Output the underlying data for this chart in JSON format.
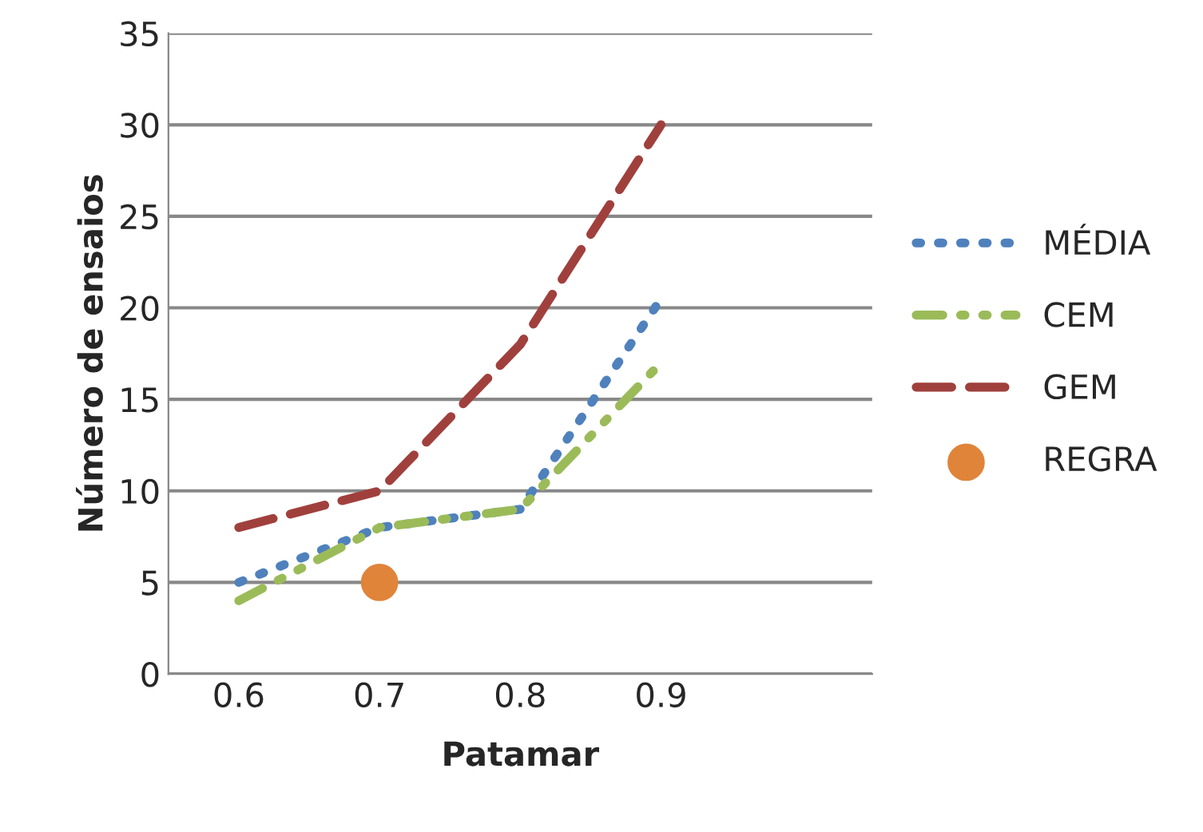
{
  "chart_data": {
    "type": "line",
    "xlabel": "Patamar",
    "ylabel": "Número de ensaios",
    "categories": [
      "0.6",
      "0.7",
      "0.8",
      "0.9",
      null
    ],
    "series": [
      {
        "name": "MÉDIA",
        "color": "#4f81bd",
        "line_style": "dotted",
        "values": [
          5,
          8,
          9,
          20.5,
          null
        ]
      },
      {
        "name": "CEM",
        "color": "#9bbb59",
        "line_style": "dashdot",
        "values": [
          4,
          8,
          9,
          17,
          null
        ]
      },
      {
        "name": "GEM",
        "color": "#a0403d",
        "line_style": "dashed",
        "values": [
          8,
          10,
          18,
          30,
          null
        ]
      },
      {
        "name": "REGRA",
        "type": "scatter",
        "marker": "circle",
        "color": "#e0843a",
        "values": [
          null,
          5,
          null,
          null,
          null
        ]
      }
    ],
    "ylim": [
      0,
      35
    ],
    "yticks": [
      0,
      5,
      10,
      15,
      20,
      25,
      30,
      35
    ],
    "grid": "y",
    "legend": "right"
  }
}
